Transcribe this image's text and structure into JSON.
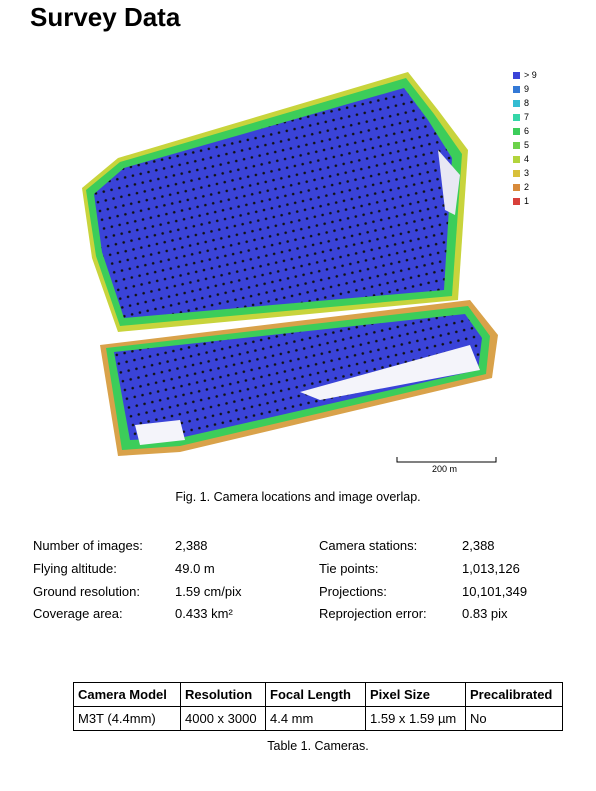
{
  "title": "Survey Data",
  "figure": {
    "legend": [
      "> 9",
      "9",
      "8",
      "7",
      "6",
      "5",
      "4",
      "3",
      "2",
      "1"
    ],
    "scale_label": "200 m",
    "caption": "Fig. 1. Camera locations and image overlap."
  },
  "stats": {
    "rows": [
      [
        "Number of images:",
        "2,388",
        "Camera stations:",
        "2,388"
      ],
      [
        "Flying altitude:",
        "49.0 m",
        "Tie points:",
        "1,013,126"
      ],
      [
        "Ground resolution:",
        "1.59 cm/pix",
        "Projections:",
        "10,101,349"
      ],
      [
        "Coverage area:",
        "0.433 km²",
        "Reprojection error:",
        "0.83 pix"
      ]
    ]
  },
  "table": {
    "header": [
      "Camera Model",
      "Resolution",
      "Focal Length",
      "Pixel Size",
      "Precalibrated"
    ],
    "rows": [
      [
        "M3T (4.4mm)",
        "4000 x 3000",
        "4.4 mm",
        "1.59 x 1.59 µm",
        "No"
      ]
    ],
    "caption": "Table 1. Cameras."
  }
}
